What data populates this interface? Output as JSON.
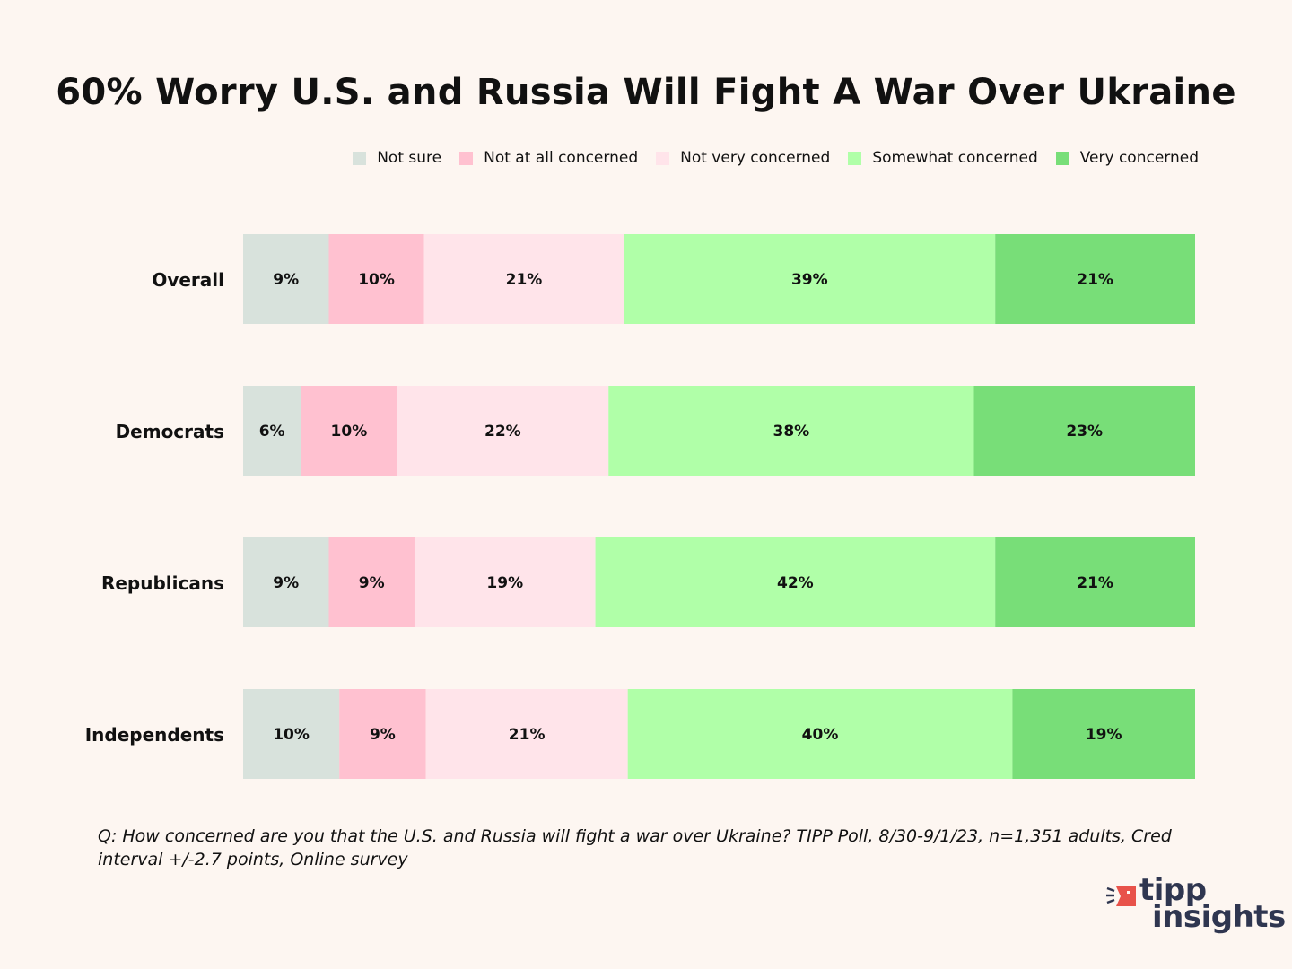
{
  "chart_data": {
    "type": "bar",
    "orientation": "horizontal",
    "stacked": true,
    "title": "60% Worry U.S. and Russia Will Fight A War Over Ukraine",
    "categories": [
      "Overall",
      "Democrats",
      "Republicans",
      "Independents"
    ],
    "series": [
      {
        "name": "Not sure",
        "color": "#d8e2dc",
        "values": [
          9,
          6,
          9,
          10
        ]
      },
      {
        "name": "Not at all concerned",
        "color": "#ffc1d0",
        "values": [
          10,
          10,
          9,
          9
        ]
      },
      {
        "name": "Not very concerned",
        "color": "#ffe4ea",
        "values": [
          21,
          22,
          19,
          21
        ]
      },
      {
        "name": "Somewhat concerned",
        "color": "#b0ffa8",
        "values": [
          39,
          38,
          42,
          40
        ]
      },
      {
        "name": "Very concerned",
        "color": "#78de78",
        "values": [
          21,
          23,
          21,
          19
        ]
      }
    ],
    "value_suffix": "%",
    "legend_position": "top-right",
    "xlabel": "",
    "ylabel": "",
    "grid": false
  },
  "footnote": "Q:  How concerned are you that the U.S. and Russia will fight a war over Ukraine? TIPP Poll, 8/30-9/1/23, n=1,351 adults, Cred interval +/-2.7 points, Online survey",
  "logo": {
    "line1": "tipp",
    "line2": "insights",
    "accent": "#e8524a",
    "text_color": "#2f3650"
  }
}
